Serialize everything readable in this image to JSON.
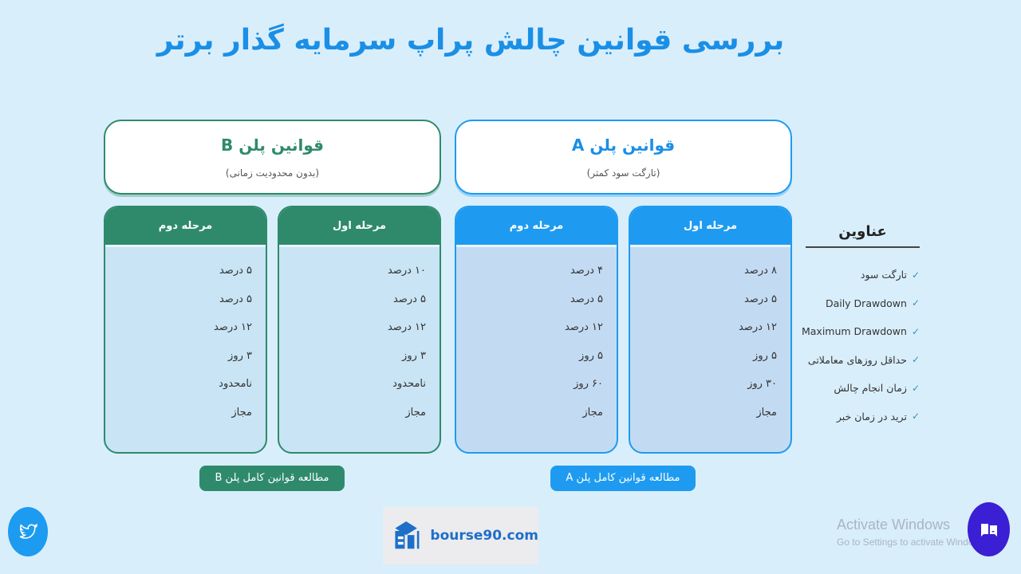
{
  "title": "بررسی قوانین چالش پراپ سرمایه گذار برتر",
  "plan_b": {
    "title": "قوانین پلن B",
    "subtitle": "(بدون محدودیت زمانی)",
    "button": "مطالعه قوانین کامل پلن B",
    "stage2": {
      "label": "مرحله دوم",
      "values": [
        "۵ درصد",
        "۵ درصد",
        "۱۲ درصد",
        "۳ روز",
        "نامحدود",
        "مجاز"
      ]
    },
    "stage1": {
      "label": "مرحله اول",
      "values": [
        "۱۰ درصد",
        "۵ درصد",
        "۱۲ درصد",
        "۳ روز",
        "نامحدود",
        "مجاز"
      ]
    }
  },
  "plan_a": {
    "title": "قوانین پلن A",
    "subtitle": "(تارگت سود کمتر)",
    "button": "مطالعه قوانین کامل پلن A",
    "stage2": {
      "label": "مرحله دوم",
      "values": [
        "۴ درصد",
        "۵ درصد",
        "۱۲ درصد",
        "۵ روز",
        "۶۰ روز",
        "مجاز"
      ]
    },
    "stage1": {
      "label": "مرحله اول",
      "values": [
        "۸ درصد",
        "۵ درصد",
        "۱۲ درصد",
        "۵ روز",
        "۳۰ روز",
        "مجاز"
      ]
    }
  },
  "labels": {
    "title": "عناوین",
    "items": [
      "تارگت سود",
      "Daily Drawdown",
      "Maximum Drawdown",
      "حداقل روزهای معاملاتی",
      "زمان انجام چالش",
      "ترید در زمان خبر"
    ]
  },
  "logo": {
    "text": "bourse90.com"
  },
  "watermark": {
    "line1": "Activate Windows",
    "line2": "Go to Settings to activate Windows."
  },
  "colors": {
    "blue": "#1e9bf0",
    "green": "#2f8a6c",
    "chat": "#3a1fd4"
  }
}
